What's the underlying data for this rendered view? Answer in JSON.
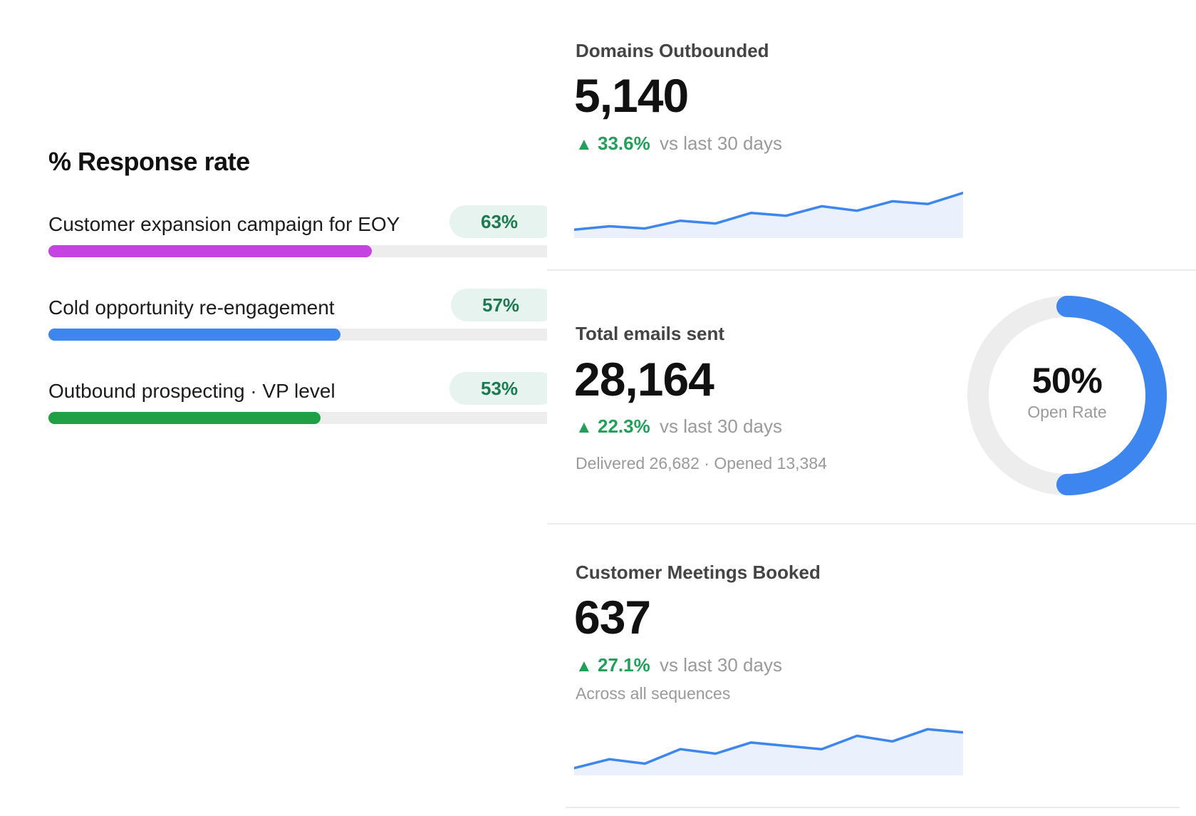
{
  "response_rate": {
    "title": "% Response rate",
    "items": [
      {
        "label": "Customer expansion campaign for EOY",
        "value_label": "63%",
        "value": 0.63,
        "color": "#c543e0"
      },
      {
        "label": "Cold opportunity re-engagement",
        "value_label": "57%",
        "value": 0.57,
        "color": "#3d86f0"
      },
      {
        "label": "Outbound prospecting · VP level",
        "value_label": "53%",
        "value": 0.53,
        "color": "#1f9f46"
      }
    ]
  },
  "domains": {
    "title": "Domains Outbounded",
    "value": "5,140",
    "delta_pct": "33.6%",
    "delta_text": "vs last 30 days",
    "trend": [
      10,
      16,
      12,
      26,
      21,
      40,
      35,
      52,
      44,
      61,
      56,
      76
    ],
    "line_color": "#3d86f0",
    "fill_color": "#eaf1fd"
  },
  "emails": {
    "title": "Total emails sent",
    "value": "28,164",
    "delta_pct": "22.3%",
    "delta_text": "vs last 30 days",
    "sub": "Delivered 26,682 · Opened 13,384",
    "open_rate_label": "50%",
    "open_rate": 0.5,
    "open_rate_caption": "Open Rate",
    "ring_color": "#3d86f0",
    "ring_track_color": "#ededed"
  },
  "meetings": {
    "title": "Customer Meetings Booked",
    "value": "637",
    "delta_pct": "27.1%",
    "delta_text": "vs last 30 days",
    "sub": "Across all sequences",
    "trend": [
      8,
      24,
      16,
      42,
      34,
      54,
      48,
      42,
      66,
      56,
      78,
      72
    ],
    "line_color": "#3d86f0",
    "fill_color": "#eaf1fd"
  }
}
